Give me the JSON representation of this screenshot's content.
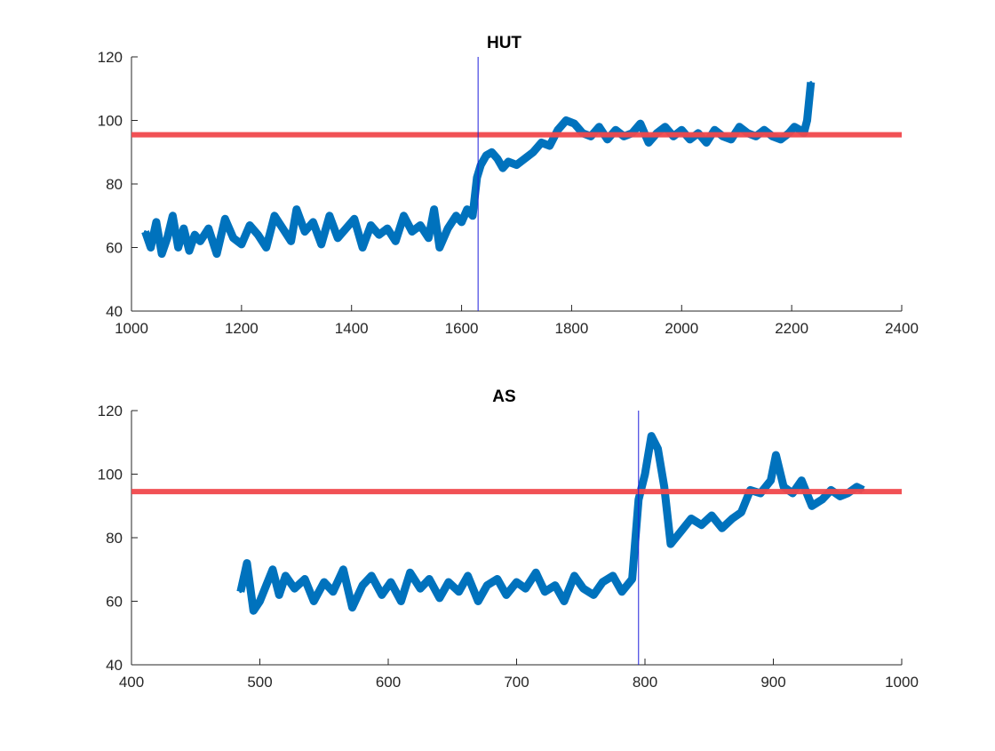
{
  "chart_data": [
    {
      "type": "line",
      "title": "HUT",
      "xlabel": "",
      "ylabel": "",
      "xlim": [
        1000,
        2400
      ],
      "ylim": [
        40,
        120
      ],
      "xticks": [
        1000,
        1200,
        1400,
        1600,
        1800,
        2000,
        2200,
        2400
      ],
      "yticks": [
        40,
        60,
        80,
        100,
        120
      ],
      "grid": false,
      "colors": {
        "signal": "#0072BD",
        "threshold": "#F0484C",
        "marker": "#1F1FDB"
      },
      "threshold_y": 95.5,
      "marker_x": 1630,
      "series": [
        {
          "x": [
            1025,
            1035,
            1045,
            1055,
            1065,
            1075,
            1085,
            1095,
            1105,
            1115,
            1125,
            1140,
            1155,
            1170,
            1185,
            1200,
            1215,
            1230,
            1245,
            1260,
            1275,
            1290,
            1300,
            1315,
            1330,
            1345,
            1360,
            1375,
            1390,
            1405,
            1420,
            1435,
            1450,
            1465,
            1480,
            1495,
            1510,
            1525,
            1540,
            1550,
            1560,
            1575,
            1590,
            1600,
            1610,
            1620,
            1628,
            1635,
            1645,
            1655,
            1665,
            1675,
            1685,
            1700,
            1715,
            1730,
            1745,
            1760,
            1775,
            1790,
            1805,
            1820,
            1835,
            1850,
            1865,
            1880,
            1895,
            1910,
            1925,
            1940,
            1955,
            1970,
            1985,
            2000,
            2015,
            2030,
            2045,
            2060,
            2075,
            2090,
            2105,
            2120,
            2135,
            2150,
            2165,
            2180,
            2195,
            2205,
            2215,
            2222,
            2228,
            2235
          ],
          "y": [
            65,
            60,
            68,
            58,
            63,
            70,
            60,
            66,
            59,
            64,
            62,
            66,
            58,
            69,
            63,
            61,
            67,
            64,
            60,
            70,
            66,
            62,
            72,
            65,
            68,
            61,
            70,
            63,
            66,
            69,
            60,
            67,
            64,
            66,
            62,
            70,
            65,
            67,
            63,
            72,
            60,
            66,
            70,
            68,
            72,
            70,
            82,
            86,
            89,
            90,
            88,
            85,
            87,
            86,
            88,
            90,
            93,
            92,
            97,
            100,
            99,
            96,
            95,
            98,
            94,
            97,
            95,
            96,
            99,
            93,
            96,
            98,
            95,
            97,
            94,
            96,
            93,
            97,
            95,
            94,
            98,
            96,
            95,
            97,
            95,
            94,
            96,
            98,
            97,
            96,
            100,
            112
          ]
        }
      ]
    },
    {
      "type": "line",
      "title": "AS",
      "xlabel": "",
      "ylabel": "",
      "xlim": [
        400,
        1000
      ],
      "ylim": [
        40,
        120
      ],
      "xticks": [
        400,
        500,
        600,
        700,
        800,
        900,
        1000
      ],
      "yticks": [
        40,
        60,
        80,
        100,
        120
      ],
      "grid": false,
      "colors": {
        "signal": "#0072BD",
        "threshold": "#F0484C",
        "marker": "#1F1FDB"
      },
      "threshold_y": 94.5,
      "marker_x": 795,
      "series": [
        {
          "x": [
            485,
            490,
            495,
            500,
            505,
            510,
            515,
            520,
            527,
            535,
            542,
            550,
            557,
            565,
            572,
            580,
            587,
            595,
            602,
            610,
            617,
            625,
            632,
            640,
            647,
            655,
            662,
            670,
            677,
            685,
            692,
            700,
            707,
            715,
            722,
            730,
            737,
            745,
            752,
            760,
            767,
            775,
            782,
            790,
            795,
            800,
            805,
            810,
            815,
            820,
            828,
            836,
            844,
            852,
            860,
            868,
            875,
            882,
            890,
            898,
            902,
            908,
            915,
            922,
            930,
            938,
            945,
            952,
            958,
            965,
            970
          ],
          "y": [
            63,
            72,
            57,
            60,
            65,
            70,
            62,
            68,
            64,
            67,
            60,
            66,
            63,
            70,
            58,
            65,
            68,
            62,
            66,
            60,
            69,
            64,
            67,
            61,
            66,
            63,
            68,
            60,
            65,
            67,
            62,
            66,
            64,
            69,
            63,
            65,
            60,
            68,
            64,
            62,
            66,
            68,
            63,
            67,
            92,
            100,
            112,
            108,
            96,
            78,
            82,
            86,
            84,
            87,
            83,
            86,
            88,
            95,
            94,
            98,
            106,
            96,
            94,
            98,
            90,
            92,
            95,
            93,
            94,
            96,
            95
          ]
        }
      ]
    }
  ]
}
